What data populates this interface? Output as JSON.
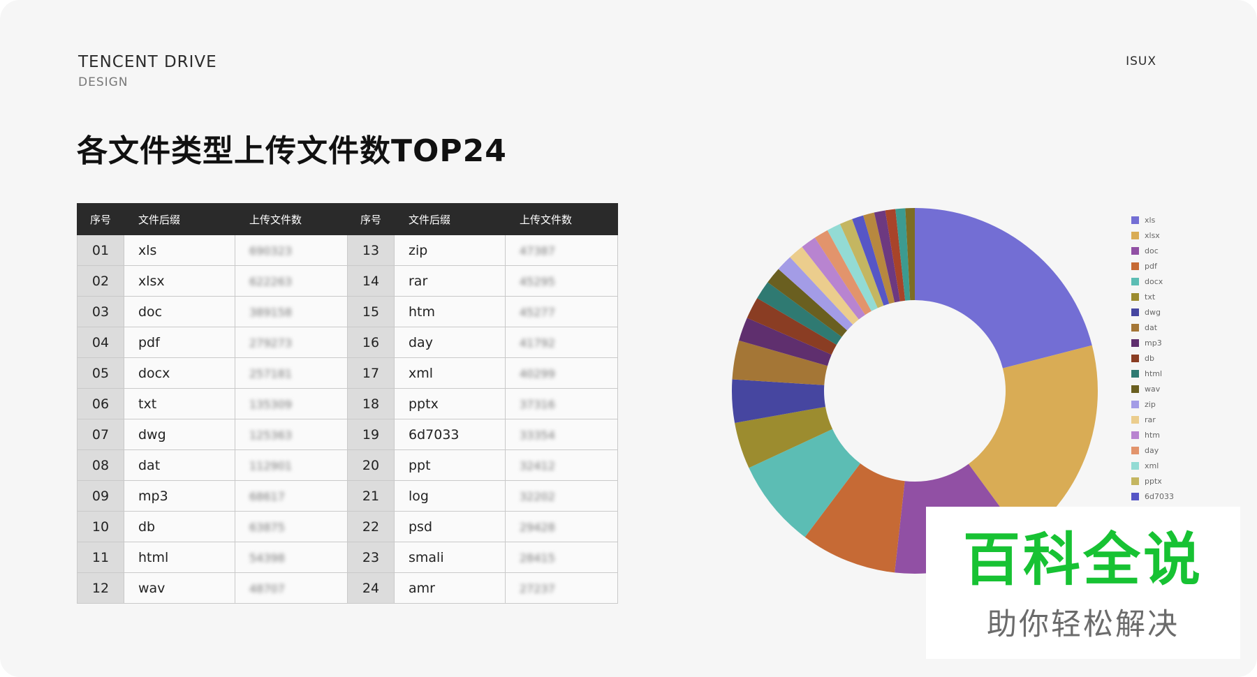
{
  "brand": {
    "title": "TENCENT DRIVE",
    "subtitle": "DESIGN",
    "right_label": "ISUX"
  },
  "title": "各文件类型上传文件数TOP24",
  "table": {
    "headers": [
      "序号",
      "文件后缀",
      "上传文件数",
      "序号",
      "文件后缀",
      "上传文件数"
    ],
    "rows": [
      {
        "i1": "01",
        "e1": "xls",
        "c1": "690323",
        "i2": "13",
        "e2": "zip",
        "c2": "47387"
      },
      {
        "i1": "02",
        "e1": "xlsx",
        "c1": "622263",
        "i2": "14",
        "e2": "rar",
        "c2": "45295"
      },
      {
        "i1": "03",
        "e1": "doc",
        "c1": "389158",
        "i2": "15",
        "e2": "htm",
        "c2": "45277"
      },
      {
        "i1": "04",
        "e1": "pdf",
        "c1": "279273",
        "i2": "16",
        "e2": "day",
        "c2": "41792"
      },
      {
        "i1": "05",
        "e1": "docx",
        "c1": "257181",
        "i2": "17",
        "e2": "xml",
        "c2": "40299"
      },
      {
        "i1": "06",
        "e1": "txt",
        "c1": "135309",
        "i2": "18",
        "e2": "pptx",
        "c2": "37316"
      },
      {
        "i1": "07",
        "e1": "dwg",
        "c1": "125363",
        "i2": "19",
        "e2": "6d7033",
        "c2": "33354"
      },
      {
        "i1": "08",
        "e1": "dat",
        "c1": "112901",
        "i2": "20",
        "e2": "ppt",
        "c2": "32412"
      },
      {
        "i1": "09",
        "e1": "mp3",
        "c1": "68617",
        "i2": "21",
        "e2": "log",
        "c2": "32202"
      },
      {
        "i1": "10",
        "e1": "db",
        "c1": "63875",
        "i2": "22",
        "e2": "psd",
        "c2": "29428"
      },
      {
        "i1": "11",
        "e1": "html",
        "c1": "54398",
        "i2": "23",
        "e2": "smali",
        "c2": "28415"
      },
      {
        "i1": "12",
        "e1": "wav",
        "c1": "48707",
        "i2": "24",
        "e2": "amr",
        "c2": "27237"
      }
    ]
  },
  "chart_data": {
    "type": "pie",
    "donut": true,
    "legend_position": "right",
    "labels": [
      "xls",
      "xlsx",
      "doc",
      "pdf",
      "docx",
      "txt",
      "dwg",
      "dat",
      "mp3",
      "db",
      "html",
      "wav",
      "zip",
      "rar",
      "htm",
      "day",
      "xml",
      "pptx",
      "6d7033",
      "ppt",
      "log",
      "psd",
      "smali",
      "amr"
    ],
    "values": [
      690323,
      622263,
      389158,
      279273,
      257181,
      135309,
      125363,
      112901,
      68617,
      63875,
      54398,
      48707,
      47387,
      45295,
      45277,
      41792,
      40299,
      37316,
      33354,
      32412,
      32202,
      29428,
      28415,
      27237
    ],
    "colors": [
      "#736ed4",
      "#d9ac55",
      "#9150a4",
      "#c66a35",
      "#5cbdb4",
      "#9c8c2f",
      "#4646a0",
      "#a47636",
      "#5f2f6e",
      "#8a3d23",
      "#2f7a72",
      "#6a5f20",
      "#a39ce6",
      "#ebcd8d",
      "#b884d0",
      "#e2946c",
      "#93dbd4",
      "#c4b661",
      "#5656c6",
      "#b7883f",
      "#6d3980",
      "#a8442a",
      "#3c9b90",
      "#7d6d24"
    ]
  },
  "watermark": {
    "main": "百科全说",
    "sub": "助你轻松解决"
  }
}
